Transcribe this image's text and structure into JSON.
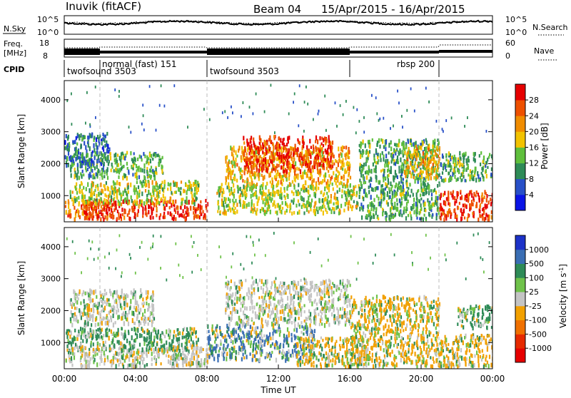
{
  "header": {
    "station": "Inuvik (fitACF)",
    "beam": "Beam 04",
    "date_range": "15/Apr/2015 - 16/Apr/2015"
  },
  "summary": {
    "nsky_label": "N.Sky",
    "nsearch_label": "N.Search",
    "freq_label_line1": "Freq.",
    "freq_label_line2": "[MHz]",
    "nave_label": "Nave",
    "cpid_label": "CPID",
    "count_ticks_left": [
      "10^5",
      "10^0"
    ],
    "count_ticks_right": [
      "10^5",
      "10^0"
    ],
    "freq_ticks": [
      "18",
      "8"
    ],
    "nave_ticks": [
      "60",
      "0"
    ],
    "cpid_segments": [
      {
        "name": "twofsound 3503",
        "start_h": 0.0,
        "end_h": 2.0
      },
      {
        "name": "normal (fast) 151",
        "start_h": 2.0,
        "end_h": 8.0
      },
      {
        "name": "twofsound 3503",
        "start_h": 8.0,
        "end_h": 16.0
      },
      {
        "name": "rbsp 200",
        "start_h": 16.0,
        "end_h": 21.0
      }
    ]
  },
  "chart_data": [
    {
      "type": "heatmap",
      "name": "power",
      "ylabel": "Slant Range [km]",
      "ylim": [
        180,
        4600
      ],
      "yticks": [
        "1000",
        "2000",
        "3000",
        "4000"
      ],
      "xlim_hours": [
        0,
        24
      ],
      "colorbar_label": "Power [dB]",
      "colorbar_ticks": [
        "4",
        "8",
        "12",
        "16",
        "20",
        "24",
        "28"
      ],
      "colorbar_colors": [
        "#0a14e6",
        "#2850c8",
        "#2e8b57",
        "#5fbf3c",
        "#f2c200",
        "#f08c00",
        "#ee5000",
        "#e60000"
      ],
      "regions": [
        {
          "t0": 0.0,
          "t1": 2.6,
          "r0": 300,
          "r1": 900,
          "level": 24
        },
        {
          "t0": 1.0,
          "t1": 8.0,
          "r0": 300,
          "r1": 900,
          "level": 28
        },
        {
          "t0": 0.3,
          "t1": 7.5,
          "r0": 800,
          "r1": 1500,
          "level": 16
        },
        {
          "t0": 0.3,
          "t1": 5.5,
          "r0": 1600,
          "r1": 2400,
          "level": 12
        },
        {
          "t0": 0.0,
          "t1": 2.5,
          "r0": 2000,
          "r1": 3000,
          "level": 8
        },
        {
          "t0": 8.5,
          "t1": 16.5,
          "r0": 500,
          "r1": 1400,
          "level": 16
        },
        {
          "t0": 9.0,
          "t1": 16.0,
          "r0": 1400,
          "r1": 2600,
          "level": 20
        },
        {
          "t0": 10.0,
          "t1": 15.0,
          "r0": 1800,
          "r1": 2900,
          "level": 28
        },
        {
          "t0": 16.5,
          "t1": 21.0,
          "r0": 300,
          "r1": 2800,
          "level": 12
        },
        {
          "t0": 19.0,
          "t1": 21.0,
          "r0": 1600,
          "r1": 2600,
          "level": 20
        },
        {
          "t0": 21.0,
          "t1": 24.0,
          "r0": 300,
          "r1": 1200,
          "level": 28
        },
        {
          "t0": 21.0,
          "t1": 24.0,
          "r0": 1500,
          "r1": 2400,
          "level": 12
        }
      ]
    },
    {
      "type": "heatmap",
      "name": "velocity",
      "ylabel": "Slant Range [km]",
      "ylim": [
        180,
        4600
      ],
      "yticks": [
        "1000",
        "2000",
        "3000",
        "4000"
      ],
      "xlim_hours": [
        0,
        24
      ],
      "xticks": [
        "00:00",
        "04:00",
        "08:00",
        "12:00",
        "16:00",
        "20:00",
        "00:00"
      ],
      "xlabel": "Time UT",
      "colorbar_label": "Velocity [m s^-1]",
      "colorbar_ticks": [
        "1000",
        "500",
        "100",
        "25",
        "-25",
        "-100",
        "-500",
        "-1000"
      ],
      "colorbar_colors": [
        "#1c32c8",
        "#3a6eb4",
        "#2e8b57",
        "#6fc24a",
        "#c4c4c4",
        "#f2a000",
        "#f07000",
        "#e62a00",
        "#e60000"
      ],
      "regions": [
        {
          "t0": 0.0,
          "t1": 8.0,
          "r0": 300,
          "r1": 900,
          "level": -25
        },
        {
          "t0": 0.0,
          "t1": 7.5,
          "r0": 800,
          "r1": 1500,
          "level": 100
        },
        {
          "t0": 0.3,
          "t1": 5.0,
          "r0": 1600,
          "r1": 2700,
          "level": 0
        },
        {
          "t0": 6.0,
          "t1": 8.0,
          "r0": 300,
          "r1": 700,
          "level": 0
        },
        {
          "t0": 8.0,
          "t1": 14.0,
          "r0": 500,
          "r1": 1600,
          "level": 500
        },
        {
          "t0": 9.0,
          "t1": 16.0,
          "r0": 1600,
          "r1": 3000,
          "level": 0
        },
        {
          "t0": 13.0,
          "t1": 17.0,
          "r0": 300,
          "r1": 1200,
          "level": -100
        },
        {
          "t0": 16.0,
          "t1": 21.0,
          "r0": 300,
          "r1": 2500,
          "level": -100
        },
        {
          "t0": 21.0,
          "t1": 24.0,
          "r0": 300,
          "r1": 1300,
          "level": -100
        },
        {
          "t0": 22.0,
          "t1": 24.0,
          "r0": 1500,
          "r1": 2200,
          "level": 100
        }
      ]
    }
  ]
}
